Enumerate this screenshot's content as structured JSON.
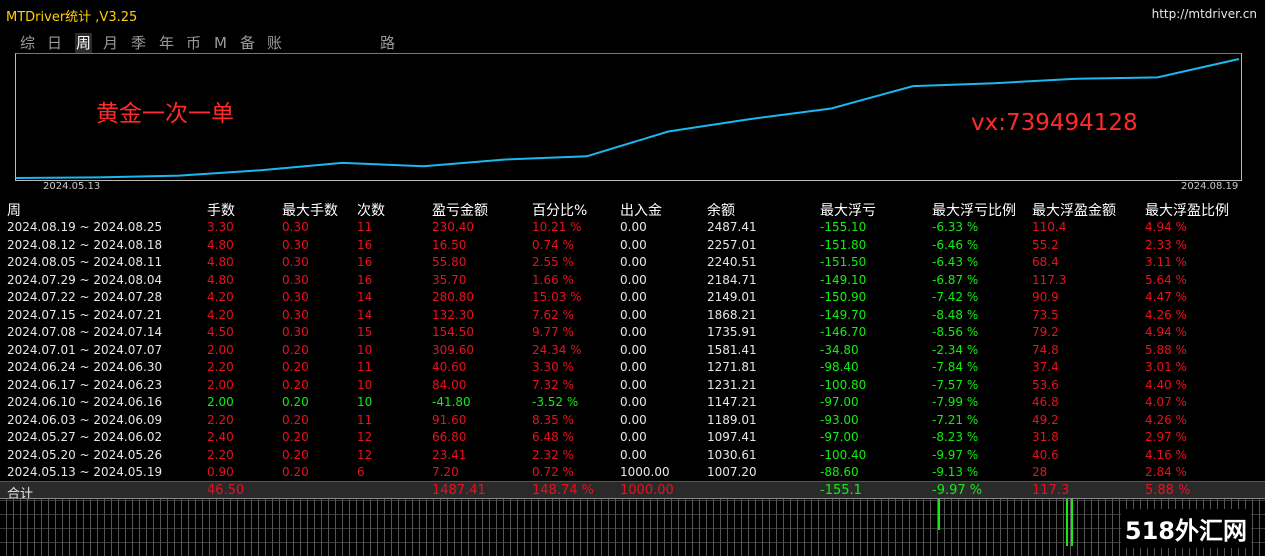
{
  "window": {
    "title": "MTDriver统计 ,V3.25",
    "url": "http://mtdriver.cn"
  },
  "tabs": [
    {
      "label": "综",
      "active": false
    },
    {
      "label": "日",
      "active": false
    },
    {
      "label": "周",
      "active": true
    },
    {
      "label": "月",
      "active": false
    },
    {
      "label": "季",
      "active": false
    },
    {
      "label": "年",
      "active": false
    },
    {
      "label": "币",
      "active": false
    },
    {
      "label": "M",
      "active": false
    },
    {
      "label": "备",
      "active": false
    },
    {
      "label": "账户",
      "active": false
    },
    {
      "label": "路径",
      "active": false
    }
  ],
  "chart": {
    "annotation_left": "黄金一次一单",
    "annotation_right": "vx:739494128",
    "start_date": "2024.05.13",
    "end_date": "2024.08.19",
    "line_color": "#1ab8f0"
  },
  "chart_data": {
    "type": "line",
    "title": "",
    "series": [
      {
        "values": [
          1000.0,
          1007.2,
          1030.61,
          1097.41,
          1189.01,
          1147.21,
          1231.21,
          1271.81,
          1581.41,
          1735.91,
          1868.21,
          2149.01,
          2184.71,
          2240.51,
          2257.01,
          2487.41
        ]
      }
    ],
    "x": [
      "2024.05.13",
      "2024.05.19",
      "2024.05.26",
      "2024.06.02",
      "2024.06.09",
      "2024.06.16",
      "2024.06.23",
      "2024.06.30",
      "2024.07.07",
      "2024.07.14",
      "2024.07.21",
      "2024.07.28",
      "2024.08.04",
      "2024.08.11",
      "2024.08.18",
      "2024.08.25"
    ],
    "ylim": [
      1000,
      2500
    ],
    "grid": false,
    "color": "#1ab8f0"
  },
  "table": {
    "headers": [
      "周",
      "手数",
      "最大手数",
      "次数",
      "盈亏金额",
      "百分比%",
      "出入金",
      "余额",
      "最大浮亏",
      "最大浮亏比例",
      "最大浮盈金额",
      "最大浮盈比例"
    ],
    "rows": [
      [
        "2024.08.19 ~ 2024.08.25",
        "3.30",
        "0.30",
        "11",
        "230.40",
        "10.21 %",
        "0.00",
        "2487.41",
        "-155.10",
        "-6.33 %",
        "110.4",
        "4.94 %"
      ],
      [
        "2024.08.12 ~ 2024.08.18",
        "4.80",
        "0.30",
        "16",
        "16.50",
        "0.74 %",
        "0.00",
        "2257.01",
        "-151.80",
        "-6.46 %",
        "55.2",
        "2.33 %"
      ],
      [
        "2024.08.05 ~ 2024.08.11",
        "4.80",
        "0.30",
        "16",
        "55.80",
        "2.55 %",
        "0.00",
        "2240.51",
        "-151.50",
        "-6.43 %",
        "68.4",
        "3.11 %"
      ],
      [
        "2024.07.29 ~ 2024.08.04",
        "4.80",
        "0.30",
        "16",
        "35.70",
        "1.66 %",
        "0.00",
        "2184.71",
        "-149.10",
        "-6.87 %",
        "117.3",
        "5.64 %"
      ],
      [
        "2024.07.22 ~ 2024.07.28",
        "4.20",
        "0.30",
        "14",
        "280.80",
        "15.03 %",
        "0.00",
        "2149.01",
        "-150.90",
        "-7.42 %",
        "90.9",
        "4.47 %"
      ],
      [
        "2024.07.15 ~ 2024.07.21",
        "4.20",
        "0.30",
        "14",
        "132.30",
        "7.62 %",
        "0.00",
        "1868.21",
        "-149.70",
        "-8.48 %",
        "73.5",
        "4.26 %"
      ],
      [
        "2024.07.08 ~ 2024.07.14",
        "4.50",
        "0.30",
        "15",
        "154.50",
        "9.77 %",
        "0.00",
        "1735.91",
        "-146.70",
        "-8.56 %",
        "79.2",
        "4.94 %"
      ],
      [
        "2024.07.01 ~ 2024.07.07",
        "2.00",
        "0.20",
        "10",
        "309.60",
        "24.34 %",
        "0.00",
        "1581.41",
        "-34.80",
        "-2.34 %",
        "74.8",
        "5.88 %"
      ],
      [
        "2024.06.24 ~ 2024.06.30",
        "2.20",
        "0.20",
        "11",
        "40.60",
        "3.30 %",
        "0.00",
        "1271.81",
        "-98.40",
        "-7.84 %",
        "37.4",
        "3.01 %"
      ],
      [
        "2024.06.17 ~ 2024.06.23",
        "2.00",
        "0.20",
        "10",
        "84.00",
        "7.32 %",
        "0.00",
        "1231.21",
        "-100.80",
        "-7.57 %",
        "53.6",
        "4.40 %"
      ],
      [
        "2024.06.10 ~ 2024.06.16",
        "2.00",
        "0.20",
        "10",
        "-41.80",
        "-3.52 %",
        "0.00",
        "1147.21",
        "-97.00",
        "-7.99 %",
        "46.8",
        "4.07 %"
      ],
      [
        "2024.06.03 ~ 2024.06.09",
        "2.20",
        "0.20",
        "11",
        "91.60",
        "8.35 %",
        "0.00",
        "1189.01",
        "-93.00",
        "-7.21 %",
        "49.2",
        "4.26 %"
      ],
      [
        "2024.05.27 ~ 2024.06.02",
        "2.40",
        "0.20",
        "12",
        "66.80",
        "6.48 %",
        "0.00",
        "1097.41",
        "-97.00",
        "-8.23 %",
        "31.8",
        "2.97 %"
      ],
      [
        "2024.05.20 ~ 2024.05.26",
        "2.20",
        "0.20",
        "12",
        "23.41",
        "2.32 %",
        "0.00",
        "1030.61",
        "-100.40",
        "-9.97 %",
        "40.6",
        "4.16 %"
      ],
      [
        "2024.05.13 ~ 2024.05.19",
        "0.90",
        "0.20",
        "6",
        "7.20",
        "0.72 %",
        "1000.00",
        "1007.20",
        "-88.60",
        "-9.13 %",
        "28",
        "2.84 %"
      ]
    ],
    "total": [
      "合计",
      "46.50",
      "",
      "",
      "1487.41",
      "148.74 %",
      "1000.00",
      "",
      "-155.1",
      "-9.97 %",
      "117.3",
      "5.88 %"
    ]
  },
  "watermark": "518外汇网"
}
